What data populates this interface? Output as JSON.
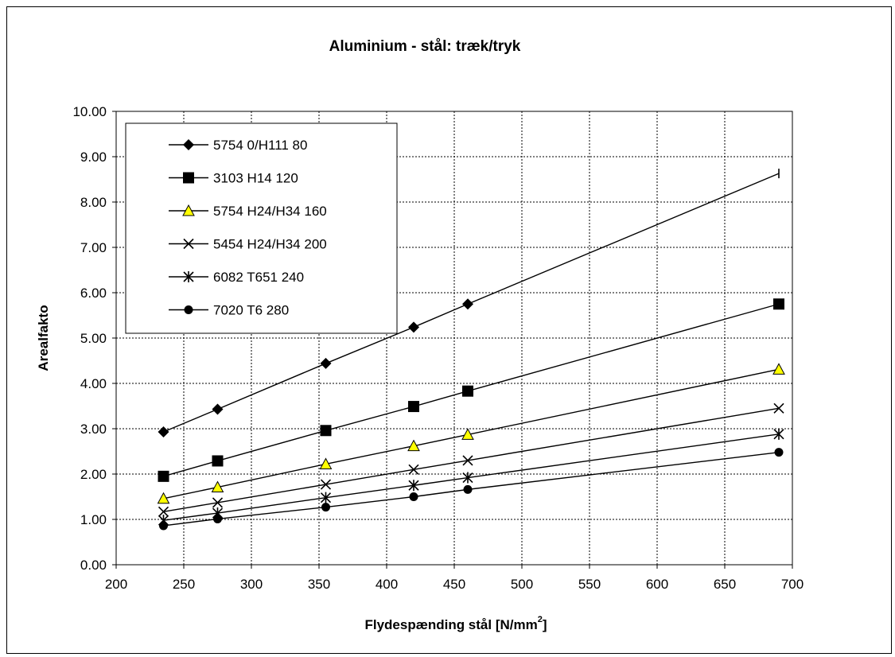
{
  "chart_data": {
    "type": "line",
    "title": "Aluminium - stål: træk/tryk",
    "xlabel": "Flydespænding stål [N/mm",
    "xlabel_sup": "2",
    "xlabel_close": "]",
    "ylabel": "Arealfakto",
    "xlim": [
      200,
      700
    ],
    "ylim": [
      0,
      10
    ],
    "xticks": [
      200,
      250,
      300,
      350,
      400,
      450,
      500,
      550,
      600,
      650,
      700
    ],
    "yticks": [
      "0.00",
      "1.00",
      "2.00",
      "3.00",
      "4.00",
      "5.00",
      "6.00",
      "7.00",
      "8.00",
      "9.00",
      "10.00"
    ],
    "grid": true,
    "legend_position": "top-left",
    "x": [
      235,
      275,
      355,
      420,
      460,
      690
    ],
    "series": [
      {
        "name": "5754 0/H111 80",
        "marker": "diamond",
        "values": [
          2.93,
          3.43,
          4.44,
          5.24,
          5.75,
          8.63
        ]
      },
      {
        "name": "3103 H14 120",
        "marker": "square",
        "values": [
          1.95,
          2.29,
          2.96,
          3.49,
          3.83,
          5.75
        ]
      },
      {
        "name": "5754 H24/H34 160",
        "marker": "triangle",
        "values": [
          1.46,
          1.71,
          2.22,
          2.62,
          2.87,
          4.31
        ]
      },
      {
        "name": "5454 H24/H34 200",
        "marker": "x",
        "values": [
          1.17,
          1.37,
          1.77,
          2.1,
          2.3,
          3.45
        ]
      },
      {
        "name": "6082 T651 240",
        "marker": "asterisk",
        "values": [
          0.98,
          1.14,
          1.48,
          1.75,
          1.92,
          2.88
        ]
      },
      {
        "name": "7020 T6 280",
        "marker": "circle",
        "values": [
          0.86,
          1.01,
          1.27,
          1.5,
          1.66,
          2.48
        ]
      }
    ],
    "colors": {
      "line": "#000000",
      "triangle_fill": "#ffff00",
      "grid": "#000000"
    }
  }
}
